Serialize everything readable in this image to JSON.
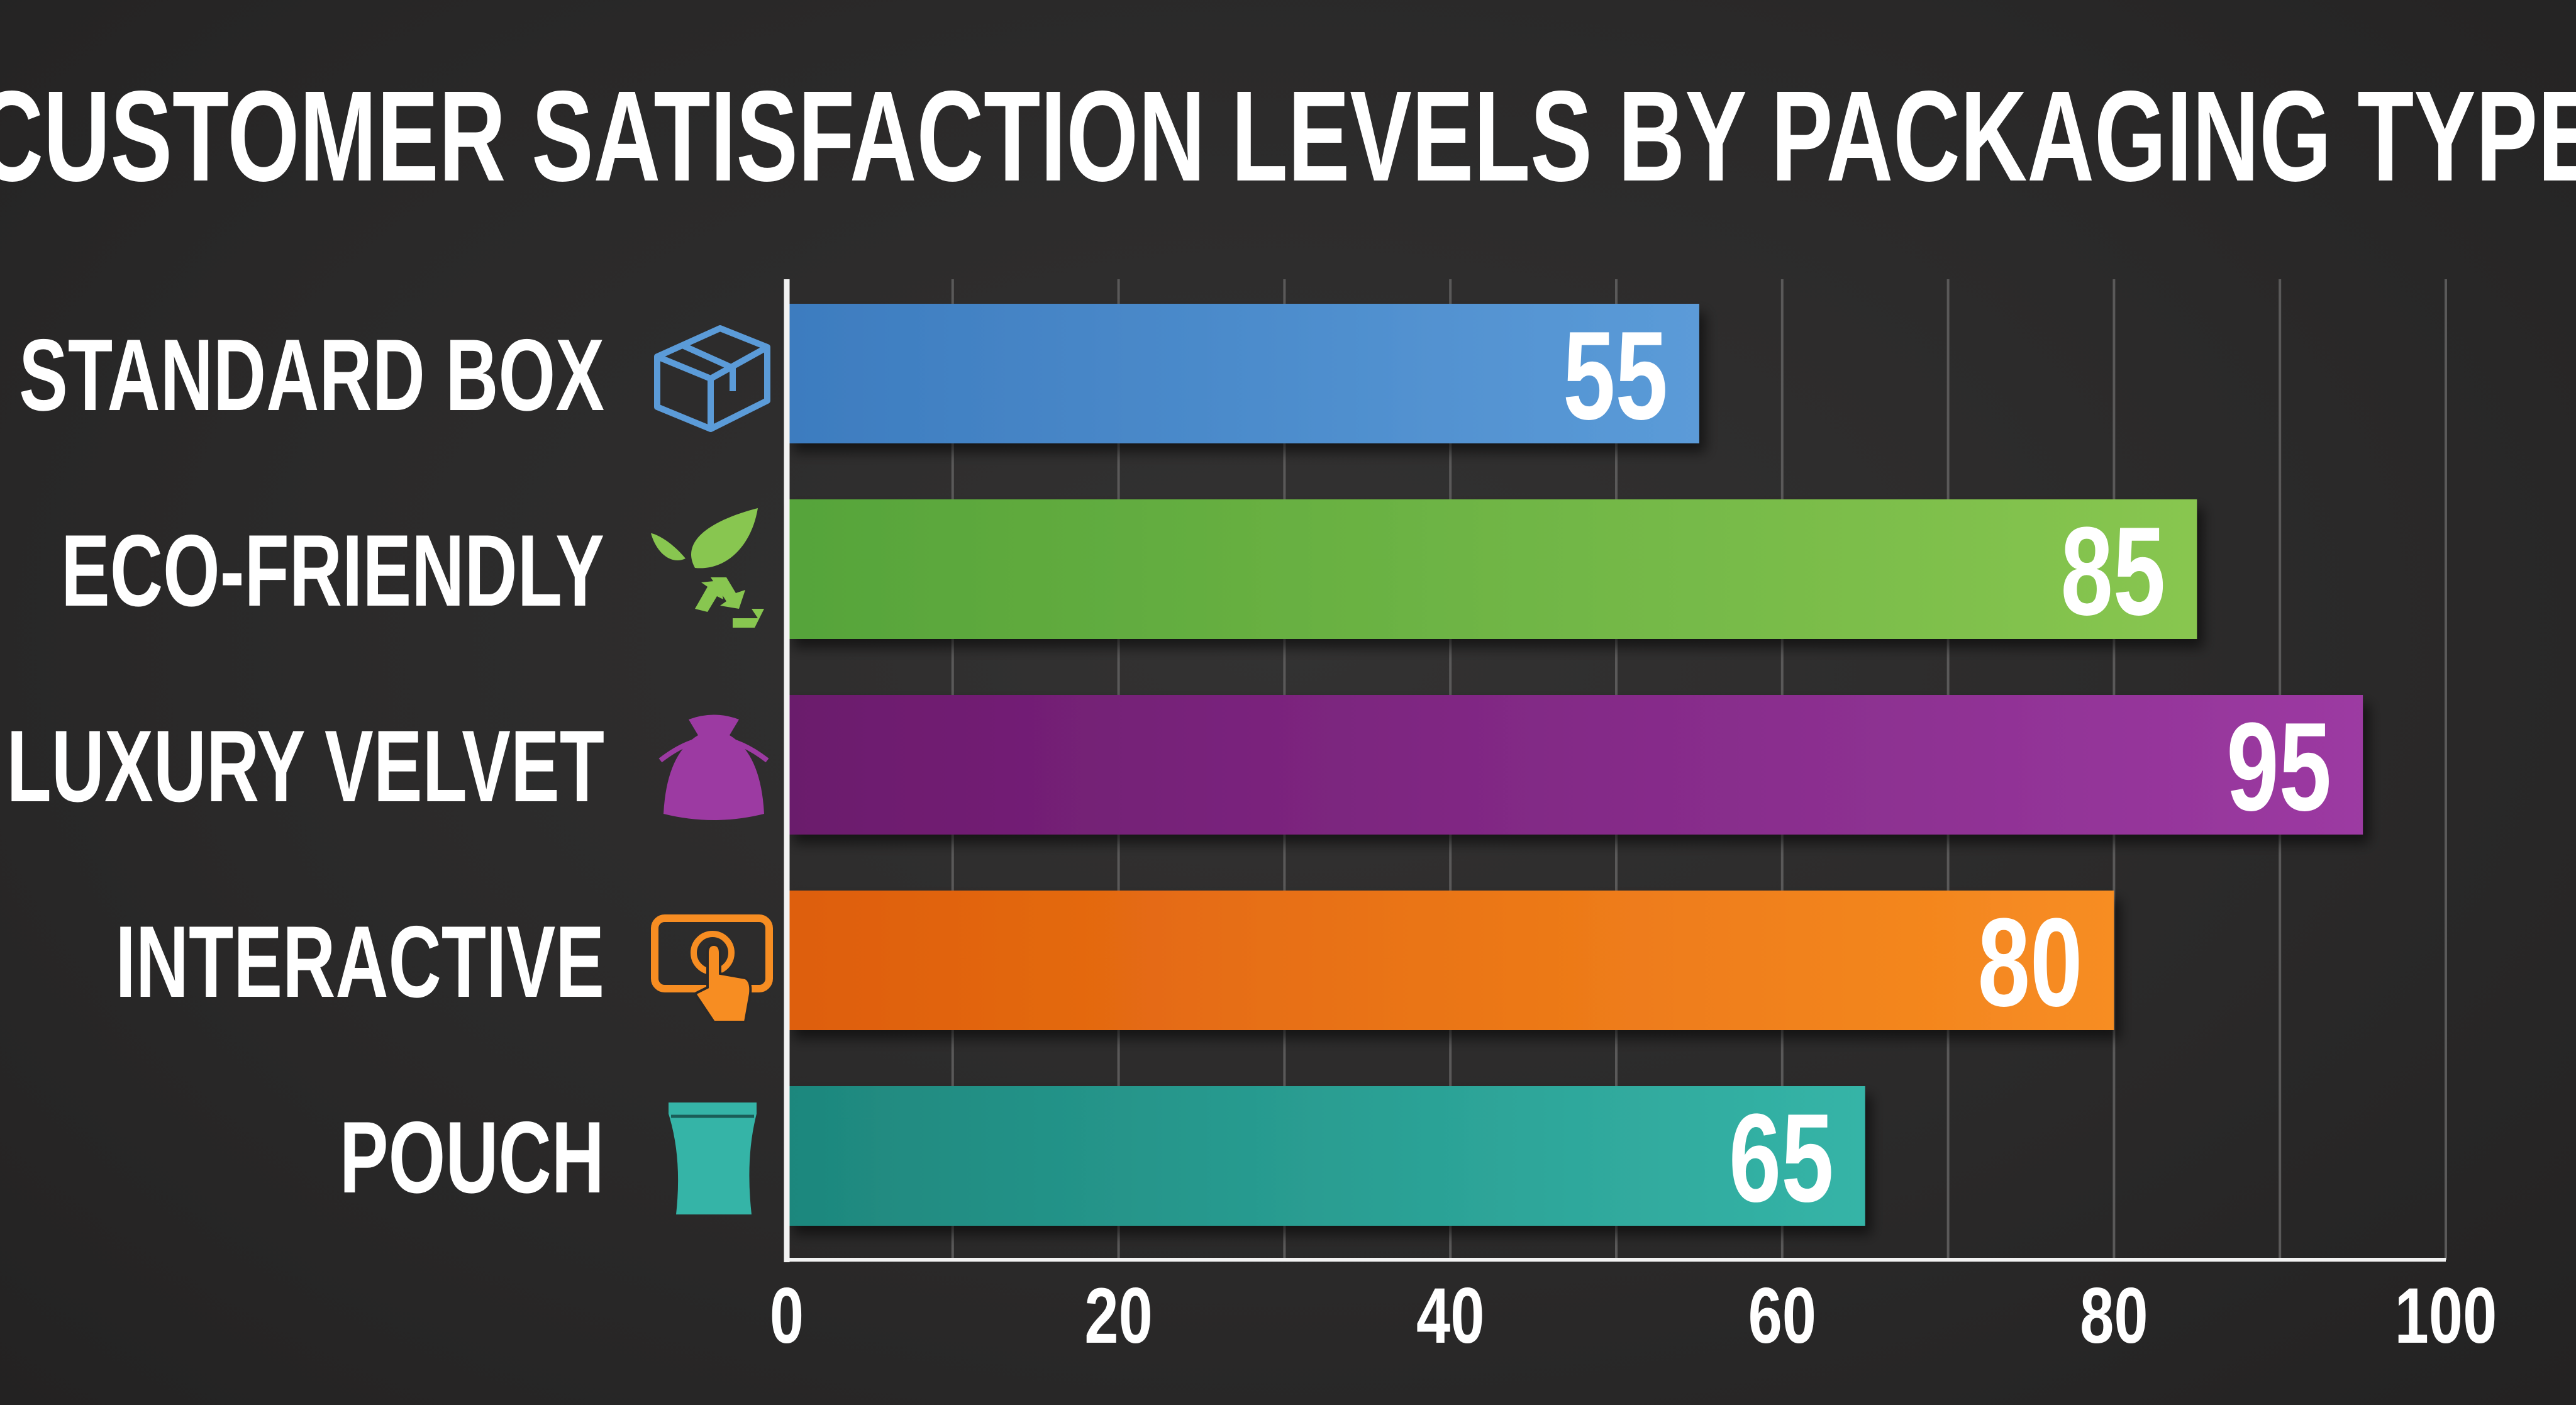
{
  "chart_data": {
    "type": "bar",
    "orientation": "horizontal",
    "title": "CUSTOMER SATISFACTION LEVELS BY PACKAGING TYPE",
    "categories": [
      "STANDARD BOX",
      "ECO-FRIENDLY",
      "LUXURY VELVET",
      "INTERACTIVE",
      "POUCH"
    ],
    "values": [
      55,
      85,
      95,
      80,
      65
    ],
    "data_labels": [
      "55",
      "85",
      "95",
      "80",
      "65"
    ],
    "icons": [
      "box-icon",
      "leaf-recycle-icon",
      "velvet-bag-icon",
      "touch-tablet-icon",
      "pouch-icon"
    ],
    "colors": [
      [
        "#3d7cbf",
        "#5b9bd8"
      ],
      [
        "#56a43a",
        "#88c650"
      ],
      [
        "#6b1a6c",
        "#9c3aa2"
      ],
      [
        "#de5e0c",
        "#f78d22"
      ],
      [
        "#1e877d",
        "#35b4a7"
      ]
    ],
    "xlim": [
      0,
      100
    ],
    "xticks": [
      "0",
      "20",
      "40",
      "60",
      "80",
      "100"
    ],
    "xtick_values": [
      0,
      20,
      40,
      60,
      80,
      100
    ],
    "grid": "vertical every 10",
    "xlabel": "",
    "ylabel": "",
    "background": "#2a2929"
  }
}
